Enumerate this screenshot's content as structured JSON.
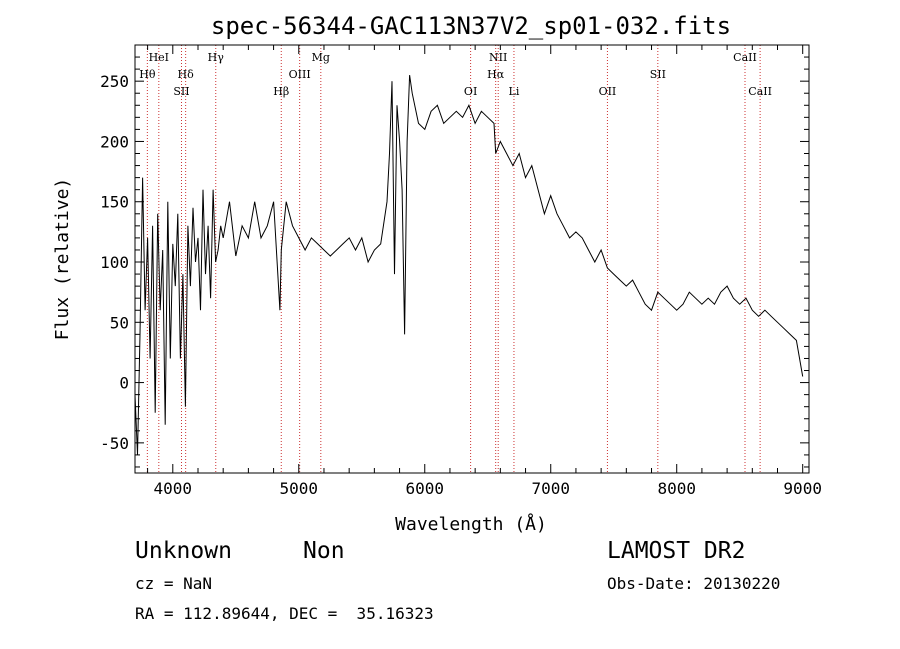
{
  "chart_data": {
    "type": "line",
    "title": "spec-56344-GAC113N37V2_sp01-032.fits",
    "xlabel": "Wavelength (Å)",
    "ylabel": "Flux (relative)",
    "xlim": [
      3700,
      9050
    ],
    "ylim": [
      -75,
      280
    ],
    "xticks": [
      4000,
      5000,
      6000,
      7000,
      8000,
      9000
    ],
    "yticks": [
      -50,
      0,
      50,
      100,
      150,
      200,
      250
    ],
    "grid": false,
    "line_color": "#000000",
    "marker_line_color": "#cc3333",
    "series": [
      {
        "x": [
          3700,
          3720,
          3740,
          3760,
          3780,
          3800,
          3820,
          3840,
          3860,
          3880,
          3900,
          3920,
          3940,
          3960,
          3980,
          4000,
          4020,
          4040,
          4060,
          4080,
          4100,
          4120,
          4140,
          4160,
          4180,
          4200,
          4220,
          4240,
          4260,
          4280,
          4300,
          4320,
          4340,
          4360,
          4380,
          4400,
          4450,
          4500,
          4550,
          4600,
          4650,
          4700,
          4750,
          4800,
          4850,
          4861,
          4900,
          4950,
          5000,
          5050,
          5100,
          5150,
          5200,
          5250,
          5300,
          5350,
          5400,
          5450,
          5500,
          5550,
          5600,
          5650,
          5700,
          5720,
          5740,
          5760,
          5780,
          5800,
          5820,
          5840,
          5860,
          5880,
          5900,
          5950,
          6000,
          6050,
          6100,
          6150,
          6200,
          6250,
          6300,
          6350,
          6400,
          6450,
          6500,
          6550,
          6563,
          6600,
          6650,
          6700,
          6750,
          6800,
          6850,
          6900,
          6950,
          7000,
          7050,
          7100,
          7150,
          7200,
          7250,
          7300,
          7350,
          7400,
          7450,
          7500,
          7550,
          7600,
          7650,
          7700,
          7750,
          7800,
          7850,
          7900,
          7950,
          8000,
          8050,
          8100,
          8150,
          8200,
          8250,
          8300,
          8350,
          8400,
          8450,
          8500,
          8550,
          8600,
          8650,
          8700,
          8750,
          8800,
          8850,
          8900,
          8950,
          9000
        ],
        "y": [
          -10,
          -60,
          40,
          170,
          60,
          120,
          20,
          130,
          -25,
          140,
          60,
          110,
          -35,
          150,
          20,
          115,
          80,
          140,
          20,
          90,
          -20,
          130,
          80,
          145,
          100,
          120,
          60,
          160,
          90,
          130,
          70,
          160,
          100,
          110,
          130,
          120,
          150,
          105,
          130,
          120,
          150,
          120,
          130,
          150,
          60,
          110,
          150,
          130,
          120,
          110,
          120,
          115,
          110,
          105,
          110,
          115,
          120,
          110,
          120,
          100,
          110,
          115,
          150,
          190,
          250,
          90,
          230,
          200,
          160,
          40,
          200,
          255,
          240,
          215,
          210,
          225,
          230,
          215,
          220,
          225,
          220,
          230,
          215,
          225,
          220,
          215,
          190,
          200,
          190,
          180,
          190,
          170,
          180,
          160,
          140,
          155,
          140,
          130,
          120,
          125,
          120,
          110,
          100,
          110,
          95,
          90,
          85,
          80,
          85,
          75,
          65,
          60,
          75,
          70,
          65,
          60,
          65,
          75,
          70,
          65,
          70,
          65,
          75,
          80,
          70,
          65,
          70,
          60,
          55,
          60,
          55,
          50,
          45,
          40,
          35,
          5
        ]
      }
    ],
    "line_markers": [
      {
        "label": "Hθ",
        "x": 3798,
        "row": 2
      },
      {
        "label": "HeI",
        "x": 3889,
        "row": 1
      },
      {
        "label": "Hδ",
        "x": 4102,
        "row": 2
      },
      {
        "label": "SII",
        "x": 4069,
        "row": 3
      },
      {
        "label": "Hγ",
        "x": 4341,
        "row": 1
      },
      {
        "label": "Hβ",
        "x": 4861,
        "row": 3
      },
      {
        "label": "OIII",
        "x": 5007,
        "row": 2
      },
      {
        "label": "Mg",
        "x": 5175,
        "row": 1
      },
      {
        "label": "OI",
        "x": 6364,
        "row": 3
      },
      {
        "label": "NII",
        "x": 6583,
        "row": 1
      },
      {
        "label": "Hα",
        "x": 6563,
        "row": 2
      },
      {
        "label": "Li",
        "x": 6708,
        "row": 3
      },
      {
        "label": "OII",
        "x": 7450,
        "row": 3
      },
      {
        "label": "SII",
        "x": 7850,
        "row": 2
      },
      {
        "label": "CaII",
        "x": 8542,
        "row": 1
      },
      {
        "label": "CaII",
        "x": 8662,
        "row": 3
      }
    ]
  },
  "info": {
    "object_class": "Unknown",
    "object_subclass": "Non",
    "survey": "LAMOST DR2",
    "cz": "cz = NaN",
    "obs_date": "Obs-Date: 20130220",
    "coords": "RA = 112.89644, DEC =  35.16323"
  }
}
